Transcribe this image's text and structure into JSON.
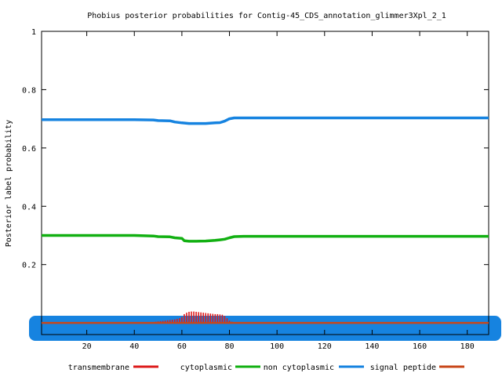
{
  "chart_data": {
    "type": "line",
    "title": "Phobius posterior probabilities for Contig-45_CDS_annotation_glimmer3Xpl_2_1",
    "xlabel": "",
    "ylabel": "Posterior label probability",
    "xlim": [
      1,
      189
    ],
    "ylim": [
      -0.04,
      1
    ],
    "x_ticks": [
      20,
      40,
      60,
      80,
      100,
      120,
      140,
      160,
      180
    ],
    "y_ticks": [
      0.2,
      0.4,
      0.6,
      0.8,
      1
    ],
    "y_tick_labels": [
      "0.2",
      "0.4",
      "0.6",
      "0.8",
      "1"
    ],
    "grid": false,
    "legend_position": "bottom",
    "legend": [
      {
        "label": "transmembrane",
        "color": "#dd1c1c"
      },
      {
        "label": "cytoplasmic",
        "color": "#12b012"
      },
      {
        "label": "non cytoplasmic",
        "color": "#1683e0"
      },
      {
        "label": "signal peptide",
        "color": "#c8471a"
      }
    ],
    "series": [
      {
        "name": "non cytoplasmic",
        "color": "#1683e0",
        "x": [
          1,
          40,
          48,
          50,
          55,
          57,
          60,
          63,
          66,
          70,
          74,
          76,
          78,
          80,
          82,
          86,
          120,
          160,
          189
        ],
        "y": [
          0.697,
          0.697,
          0.696,
          0.694,
          0.693,
          0.689,
          0.686,
          0.684,
          0.684,
          0.684,
          0.686,
          0.687,
          0.692,
          0.7,
          0.703,
          0.703,
          0.703,
          0.703,
          0.703
        ]
      },
      {
        "name": "cytoplasmic",
        "color": "#12b012",
        "x": [
          1,
          40,
          48,
          50,
          55,
          57,
          60,
          61,
          63,
          66,
          70,
          74,
          76,
          78,
          80,
          82,
          86,
          120,
          160,
          189
        ],
        "y": [
          0.3,
          0.3,
          0.298,
          0.296,
          0.295,
          0.292,
          0.29,
          0.282,
          0.28,
          0.28,
          0.281,
          0.283,
          0.285,
          0.287,
          0.292,
          0.296,
          0.297,
          0.297,
          0.297,
          0.297
        ]
      },
      {
        "name": "transmembrane",
        "color": "#dd1c1c",
        "x": [
          47,
          48,
          49,
          50,
          51,
          52,
          53,
          54,
          55,
          56,
          57,
          58,
          59,
          60,
          61,
          62,
          63,
          64,
          65,
          66,
          67,
          68,
          69,
          70,
          71,
          72,
          73,
          74,
          75,
          76,
          77,
          78,
          79,
          80,
          81,
          82,
          83
        ],
        "y": [
          0.002,
          0.003,
          0.004,
          0.005,
          0.006,
          0.007,
          0.008,
          0.009,
          0.01,
          0.011,
          0.012,
          0.014,
          0.016,
          0.02,
          0.03,
          0.035,
          0.038,
          0.039,
          0.039,
          0.038,
          0.037,
          0.036,
          0.035,
          0.034,
          0.033,
          0.032,
          0.031,
          0.03,
          0.03,
          0.029,
          0.028,
          0.024,
          0.016,
          0.008,
          0.004,
          0.002,
          0.001
        ]
      },
      {
        "name": "signal peptide",
        "color": "#c8471a",
        "x": [
          1,
          189
        ],
        "y": [
          0.0,
          0.0
        ]
      }
    ]
  }
}
